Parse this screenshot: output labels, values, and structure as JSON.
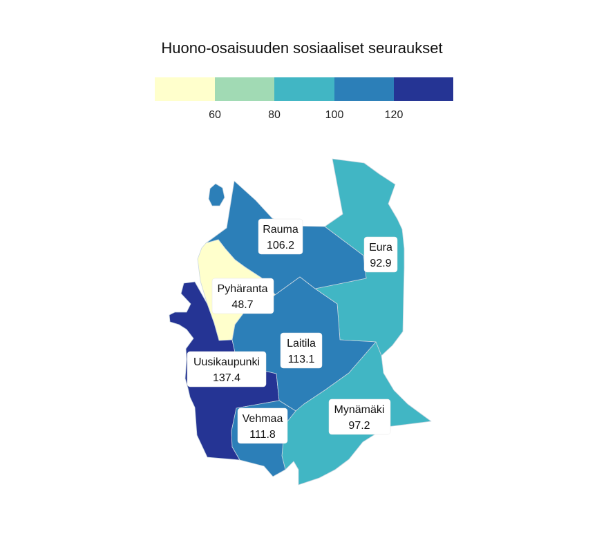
{
  "title": "Huono-osaisuuden sosiaaliset seuraukset",
  "legend": {
    "bins": [
      {
        "color": "#ffffcc"
      },
      {
        "color": "#a1dab4"
      },
      {
        "color": "#41b6c4"
      },
      {
        "color": "#2c7fb8"
      },
      {
        "color": "#253494"
      }
    ],
    "ticks": [
      "60",
      "80",
      "100",
      "120"
    ]
  },
  "chart_data": {
    "type": "choropleth",
    "title": "Huono-osaisuuden sosiaaliset seuraukset",
    "legend_breaks": [
      60,
      80,
      100,
      120
    ],
    "colors": [
      "#ffffcc",
      "#a1dab4",
      "#41b6c4",
      "#2c7fb8",
      "#253494"
    ],
    "regions": [
      {
        "name": "Rauma",
        "value": 106.2,
        "value_label": "106.2",
        "color": "#2c7fb8"
      },
      {
        "name": "Eura",
        "value": 92.9,
        "value_label": "92.9",
        "color": "#41b6c4"
      },
      {
        "name": "Pyhäranta",
        "value": 48.7,
        "value_label": "48.7",
        "color": "#ffffcc"
      },
      {
        "name": "Laitila",
        "value": 113.1,
        "value_label": "113.1",
        "color": "#2c7fb8"
      },
      {
        "name": "Uusikaupunki",
        "value": 137.4,
        "value_label": "137.4",
        "color": "#253494"
      },
      {
        "name": "Mynämäki",
        "value": 97.2,
        "value_label": "97.2",
        "color": "#41b6c4"
      },
      {
        "name": "Vehmaa",
        "value": 111.8,
        "value_label": "111.8",
        "color": "#2c7fb8"
      }
    ]
  }
}
